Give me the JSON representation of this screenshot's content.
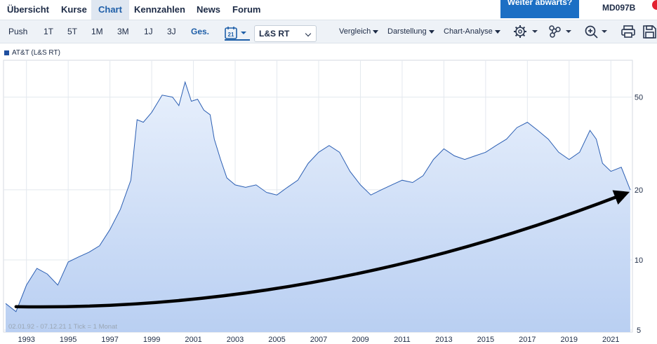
{
  "nav": {
    "tabs": [
      {
        "label": "Übersicht"
      },
      {
        "label": "Kurse"
      },
      {
        "label": "Chart"
      },
      {
        "label": "Kennzahlen"
      },
      {
        "label": "News"
      },
      {
        "label": "Forum"
      }
    ],
    "active_tab": "Chart",
    "cta_label": "Weiter abwärts?",
    "security_code": "MD097B"
  },
  "toolbar": {
    "ranges": [
      "Push",
      "1T",
      "5T",
      "1M",
      "3M",
      "1J",
      "3J",
      "Ges."
    ],
    "active_range": "Ges.",
    "calendar_day": "21",
    "exchange_select": "L&S RT",
    "menus": [
      "Vergleich",
      "Darstellung",
      "Chart-Analyse"
    ]
  },
  "icons": [
    "calendar-icon",
    "gear-icon",
    "indicators-icon",
    "zoom-icon",
    "print-icon",
    "save-icon"
  ],
  "colors": {
    "accent": "#1f5fa8",
    "line": "#2c5fb3",
    "area_top": "#e8f0fc",
    "area_bottom": "#b9cff2",
    "arrow": "#000000",
    "cta": "#1c6fc4"
  },
  "chart_data": {
    "type": "area",
    "series": [
      {
        "name": "AT&T (L&S RT)",
        "x": [
          1992.0,
          1992.5,
          1993.0,
          1993.5,
          1994.0,
          1994.5,
          1995.0,
          1995.5,
          1996.0,
          1996.5,
          1997.0,
          1997.5,
          1998.0,
          1998.3,
          1998.6,
          1999.0,
          1999.5,
          2000.0,
          2000.3,
          2000.6,
          2000.9,
          2001.2,
          2001.5,
          2001.8,
          2002.0,
          2002.3,
          2002.6,
          2003.0,
          2003.5,
          2004.0,
          2004.5,
          2005.0,
          2005.5,
          2006.0,
          2006.5,
          2007.0,
          2007.5,
          2008.0,
          2008.5,
          2009.0,
          2009.5,
          2010.0,
          2010.5,
          2011.0,
          2011.5,
          2012.0,
          2012.5,
          2013.0,
          2013.5,
          2014.0,
          2014.5,
          2015.0,
          2015.5,
          2016.0,
          2016.5,
          2017.0,
          2017.5,
          2018.0,
          2018.5,
          2019.0,
          2019.5,
          2020.0,
          2020.3,
          2020.6,
          2021.0,
          2021.5,
          2021.93
        ],
        "values": [
          6.5,
          6.0,
          7.8,
          9.2,
          8.7,
          7.8,
          9.8,
          10.3,
          10.8,
          11.5,
          13.5,
          16.5,
          22.0,
          40.0,
          39.0,
          43.0,
          51.0,
          50.0,
          46.0,
          58.0,
          48.0,
          49.0,
          44.0,
          42.0,
          33.0,
          27.0,
          22.5,
          21.0,
          20.5,
          21.0,
          19.5,
          19.0,
          20.5,
          22.0,
          26.0,
          29.0,
          31.0,
          29.0,
          24.0,
          21.0,
          19.0,
          20.0,
          21.0,
          22.0,
          21.5,
          23.0,
          27.0,
          30.0,
          28.0,
          27.0,
          28.0,
          29.0,
          31.0,
          33.0,
          37.0,
          39.0,
          36.0,
          33.0,
          29.0,
          27.0,
          29.0,
          36.0,
          33.0,
          26.0,
          24.0,
          25.0,
          20.0
        ]
      }
    ],
    "y_scale": "log",
    "yticks": [
      5,
      10,
      20,
      50
    ],
    "ylim": [
      4.9,
      72
    ],
    "xticks": [
      1993,
      1995,
      1997,
      1999,
      2001,
      2003,
      2005,
      2007,
      2009,
      2011,
      2013,
      2015,
      2017,
      2019,
      2021
    ],
    "xlim": [
      1991.9,
      2022.0
    ],
    "grid": true,
    "info": "02.01.92 - 07.12.21   1 Tick = 1 Monat",
    "annotation": {
      "type": "curved-arrow",
      "from": {
        "x": 1992.5,
        "y": 6.3
      },
      "control": {
        "x": 2007.0,
        "y": 6.0
      },
      "to": {
        "x": 2021.9,
        "y": 19.6
      }
    }
  }
}
